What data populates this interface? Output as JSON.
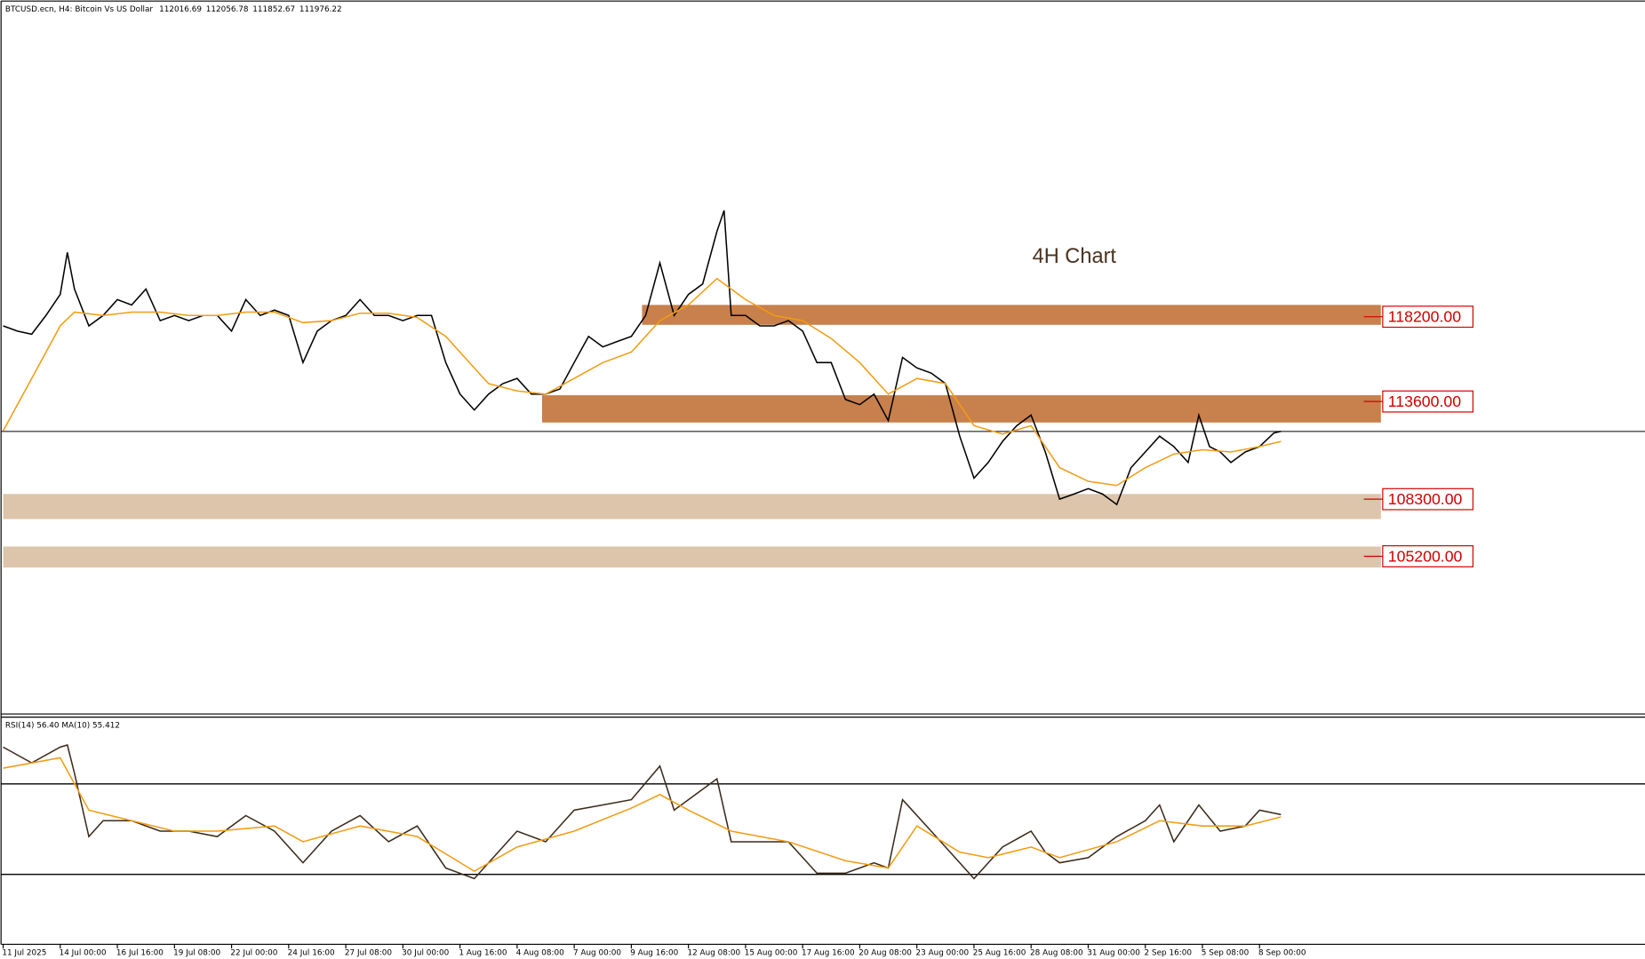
{
  "chart_data": {
    "type": "line",
    "title": "BTCUSD.ecn, H4:  Bitcoin Vs US Dollar",
    "ohlc": [
      112016.69,
      112056.78,
      111852.67,
      111976.22
    ],
    "annotation": "4H Chart",
    "xlim": [
      0,
      460
    ],
    "ylim": [
      96700,
      134700
    ],
    "xticks": [
      {
        "value": 0,
        "label": "11 Jul 2025"
      },
      {
        "value": 16,
        "label": "14 Jul 00:00"
      },
      {
        "value": 32,
        "label": "16 Jul 16:00"
      },
      {
        "value": 48,
        "label": "19 Jul 08:00"
      },
      {
        "value": 64,
        "label": "22 Jul 00:00"
      },
      {
        "value": 80,
        "label": "24 Jul 16:00"
      },
      {
        "value": 96,
        "label": "27 Jul 08:00"
      },
      {
        "value": 112,
        "label": "30 Jul 00:00"
      },
      {
        "value": 128,
        "label": "1 Aug 16:00"
      },
      {
        "value": 144,
        "label": "4 Aug 08:00"
      },
      {
        "value": 160,
        "label": "7 Aug 00:00"
      },
      {
        "value": 176,
        "label": "9 Aug 16:00"
      },
      {
        "value": 192,
        "label": "12 Aug 08:00"
      },
      {
        "value": 208,
        "label": "15 Aug 00:00"
      },
      {
        "value": 224,
        "label": "17 Aug 16:00"
      },
      {
        "value": 240,
        "label": "20 Aug 08:00"
      },
      {
        "value": 256,
        "label": "23 Aug 00:00"
      },
      {
        "value": 272,
        "label": "25 Aug 16:00"
      },
      {
        "value": 288,
        "label": "28 Aug 08:00"
      },
      {
        "value": 304,
        "label": "31 Aug 00:00"
      },
      {
        "value": 320,
        "label": "2 Sep 16:00"
      },
      {
        "value": 336,
        "label": "5 Sep 08:00"
      },
      {
        "value": 352,
        "label": "8 Sep 00:00"
      }
    ],
    "series": [
      {
        "color": "#000000",
        "x": [
          0,
          4,
          8,
          12,
          16,
          18,
          20,
          24,
          28,
          32,
          36,
          40,
          44,
          48,
          52,
          56,
          60,
          64,
          68,
          72,
          76,
          80,
          84,
          88,
          92,
          96,
          100,
          104,
          108,
          112,
          116,
          120,
          124,
          128,
          132,
          136,
          140,
          144,
          148,
          152,
          156,
          160,
          164,
          168,
          172,
          176,
          180,
          184,
          188,
          192,
          196,
          200,
          202,
          204,
          208,
          212,
          216,
          220,
          224,
          228,
          232,
          236,
          240,
          244,
          248,
          252,
          256,
          260,
          264,
          268,
          272,
          276,
          280,
          284,
          288,
          292,
          296,
          300,
          304,
          308,
          312,
          316,
          320,
          324,
          328,
          332,
          335,
          338,
          341,
          344,
          348,
          352,
          356,
          358
        ],
        "values": [
          117700,
          117420,
          117250,
          118270,
          119410,
          121690,
          119700,
          117700,
          118270,
          119130,
          118840,
          119700,
          117990,
          118270,
          117990,
          118270,
          118270,
          117420,
          119130,
          118270,
          118560,
          118270,
          115710,
          117420,
          117990,
          118270,
          119130,
          118270,
          118270,
          117990,
          118270,
          118270,
          115710,
          114000,
          113140,
          114000,
          114570,
          114850,
          114000,
          114000,
          114280,
          115710,
          117130,
          116560,
          116850,
          117130,
          118270,
          121120,
          118270,
          119410,
          119980,
          122830,
          123970,
          118270,
          118270,
          117700,
          117700,
          117990,
          117420,
          115710,
          115710,
          113710,
          113430,
          114000,
          112570,
          115990,
          115420,
          115140,
          114570,
          111720,
          109440,
          110290,
          111430,
          112290,
          112860,
          110860,
          108300,
          108580,
          108870,
          108580,
          108010,
          110010,
          110860,
          111720,
          111150,
          110290,
          112860,
          111150,
          110860,
          110290,
          110860,
          111150,
          111890,
          111980
        ]
      },
      {
        "color": "#f39c12",
        "x": [
          0,
          8,
          16,
          20,
          28,
          36,
          44,
          52,
          60,
          68,
          76,
          84,
          92,
          100,
          108,
          116,
          124,
          132,
          136,
          144,
          152,
          160,
          168,
          176,
          184,
          192,
          200,
          208,
          216,
          224,
          232,
          240,
          248,
          256,
          264,
          272,
          280,
          288,
          296,
          304,
          312,
          320,
          328,
          336,
          344,
          352,
          358
        ],
        "values": [
          112000,
          114850,
          117700,
          118450,
          118270,
          118450,
          118450,
          118270,
          118270,
          118450,
          118450,
          117880,
          117990,
          118390,
          118390,
          118160,
          117130,
          115420,
          114570,
          114170,
          114000,
          114850,
          115710,
          116280,
          117990,
          118840,
          120270,
          119130,
          118270,
          117990,
          117020,
          115710,
          114000,
          114850,
          114570,
          112290,
          111830,
          112290,
          110010,
          109270,
          109040,
          110010,
          110750,
          110980,
          110860,
          111150,
          111430
        ]
      }
    ],
    "zones": [
      {
        "level": {
          "value": 118200,
          "label": "118200.00"
        },
        "top": 118840,
        "bottom": 117760,
        "from": 179,
        "to": 386,
        "color": "#c8804c"
      },
      {
        "level": {
          "value": 113600,
          "label": "113600.00"
        },
        "top": 113940,
        "bottom": 112460,
        "from": 151,
        "to": 386,
        "color": "#c8804c"
      },
      {
        "level": {
          "value": 108300,
          "label": "108300.00"
        },
        "top": 108580,
        "bottom": 107220,
        "from": 0,
        "to": 386,
        "color": "#dcc5aa"
      },
      {
        "level": {
          "value": 105200,
          "label": "105200.00"
        },
        "top": 105730,
        "bottom": 104590,
        "from": 0,
        "to": 386,
        "color": "#dcc5aa"
      }
    ],
    "indicator": {
      "label": "RSI(14) 56.40 MA(10) 55.412",
      "ylim": [
        0,
        100
      ],
      "levels": [
        30,
        70
      ],
      "series": [
        {
          "color": "#3a2a1a",
          "x": [
            0,
            8,
            16,
            18,
            20,
            24,
            28,
            36,
            44,
            52,
            60,
            68,
            76,
            84,
            92,
            100,
            108,
            116,
            124,
            132,
            136,
            144,
            152,
            160,
            168,
            176,
            184,
            188,
            192,
            200,
            204,
            212,
            220,
            228,
            236,
            244,
            248,
            252,
            260,
            268,
            272,
            280,
            288,
            292,
            296,
            304,
            312,
            320,
            324,
            328,
            335,
            341,
            348,
            352,
            358
          ],
          "values": [
            86.3,
            79.3,
            86.3,
            87.2,
            74.7,
            46.7,
            53.7,
            53.7,
            49.1,
            49.1,
            46.7,
            56.0,
            49.1,
            35.1,
            49.1,
            56.0,
            44.4,
            51.4,
            32.8,
            28.1,
            35.1,
            49.1,
            44.4,
            58.4,
            60.7,
            63.0,
            77.9,
            58.4,
            63.0,
            72.3,
            44.4,
            44.4,
            44.4,
            30.5,
            30.5,
            35.1,
            32.8,
            63.0,
            49.1,
            35.1,
            28.1,
            42.1,
            49.1,
            39.8,
            35.1,
            37.4,
            46.7,
            53.7,
            60.7,
            44.4,
            60.7,
            49.1,
            51.4,
            58.4,
            56.4
          ]
        },
        {
          "color": "#f39c12",
          "x": [
            0,
            16,
            24,
            36,
            48,
            60,
            76,
            84,
            100,
            116,
            132,
            144,
            160,
            176,
            184,
            192,
            204,
            220,
            236,
            248,
            256,
            268,
            276,
            288,
            296,
            312,
            324,
            336,
            348,
            358
          ],
          "values": [
            77.0,
            81.6,
            58.4,
            53.7,
            49.1,
            49.1,
            51.4,
            44.4,
            51.4,
            46.7,
            31.4,
            42.1,
            49.1,
            59.3,
            65.3,
            58.4,
            49.1,
            44.4,
            36.0,
            32.8,
            51.4,
            39.8,
            37.4,
            42.1,
            37.4,
            44.4,
            53.7,
            51.4,
            51.4,
            55.4
          ]
        }
      ]
    }
  }
}
